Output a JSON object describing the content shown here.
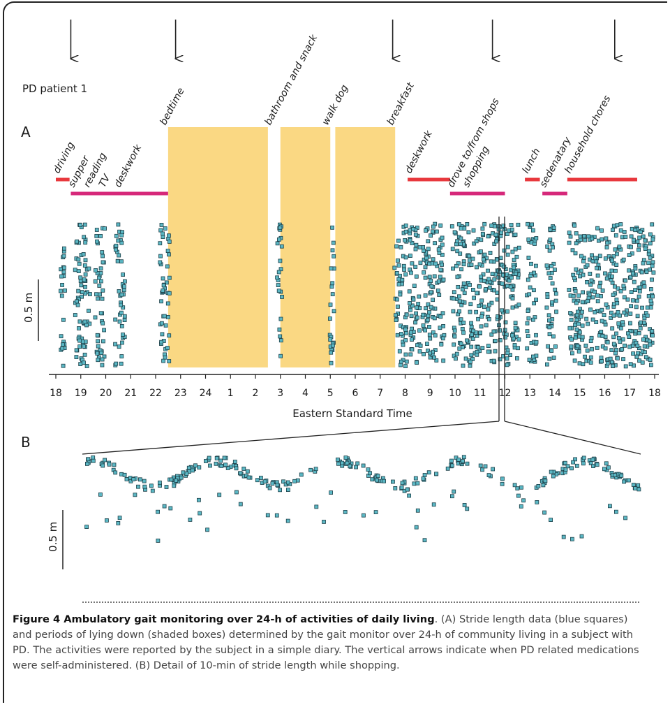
{
  "figure": {
    "patient_label": "PD patient 1",
    "panel_a": "A",
    "panel_b": "B",
    "scale_label_a": "0.5 m",
    "scale_label_b": "0.5 m",
    "caption_title": "Figure 4 Ambulatory gait monitoring over 24-h of activities of daily living",
    "caption_body": ". (A) Stride length data (blue squares) and periods of lying down (shaded boxes) determined by the gait monitor over 24-h of community living in a subject with PD. The activities were reported by the subject in a simple diary. The vertical arrows indicate when PD related medications were self-administered. (B) Detail of 10-min of stride length while shopping."
  },
  "colors": {
    "marker_fill": "#5bb7c4",
    "marker_stroke": "#1c3f48",
    "lying_box": "#fad883",
    "activity_red": "#e8383d",
    "activity_magenta": "#d6287a",
    "axis": "#222222"
  },
  "chart_data": [
    {
      "type": "scatter",
      "panel": "A",
      "xlabel": "Eastern Standard Time",
      "x_ticks": [
        "18",
        "19",
        "20",
        "21",
        "22",
        "23",
        "24",
        "1",
        "2",
        "3",
        "4",
        "5",
        "6",
        "7",
        "8",
        "9",
        "10",
        "11",
        "12",
        "13",
        "14",
        "15",
        "16",
        "17",
        "18"
      ],
      "x_range_hours": [
        18,
        42
      ],
      "medication_times_hours": [
        18.6,
        22.8,
        31.5,
        35.5,
        40.4
      ],
      "lying_down_periods_hours": [
        [
          22.5,
          26.5
        ],
        [
          27.0,
          29.0
        ],
        [
          29.2,
          31.6
        ]
      ],
      "activities": [
        {
          "label": "driving",
          "start": 18.0,
          "end": 18.55,
          "color": "red"
        },
        {
          "label": "supper",
          "start": 18.6,
          "end": 22.5,
          "color": "magenta"
        },
        {
          "label": "reading",
          "start": 18.6,
          "end": 22.5,
          "color": "magenta"
        },
        {
          "label": "TV",
          "start": 18.6,
          "end": 22.5,
          "color": "magenta"
        },
        {
          "label": "deskwork",
          "start": 18.6,
          "end": 22.5,
          "color": "magenta"
        },
        {
          "label": "bedtime",
          "start": 22.5,
          "end": 22.5,
          "color": "none"
        },
        {
          "label": "bathroom and snack",
          "start": 26.7,
          "end": 26.7,
          "color": "none"
        },
        {
          "label": "walk dog",
          "start": 29.0,
          "end": 29.0,
          "color": "none"
        },
        {
          "label": "breakfast",
          "start": 31.6,
          "end": 31.6,
          "color": "none"
        },
        {
          "label": "deskwork",
          "start": 32.1,
          "end": 33.8,
          "color": "red"
        },
        {
          "label": "drove to/from shops",
          "start": 33.8,
          "end": 36.0,
          "color": "magenta"
        },
        {
          "label": "shopping",
          "start": 33.8,
          "end": 36.0,
          "color": "magenta"
        },
        {
          "label": "lunch",
          "start": 36.8,
          "end": 37.4,
          "color": "red"
        },
        {
          "label": "sedenatary",
          "start": 37.5,
          "end": 38.5,
          "color": "magenta"
        },
        {
          "label": "household chores",
          "start": 38.5,
          "end": 41.3,
          "color": "red"
        }
      ],
      "stride_clusters_hours": [
        [
          18.1,
          18.3
        ],
        [
          18.7,
          19.3
        ],
        [
          19.5,
          19.9
        ],
        [
          20.3,
          20.7
        ],
        [
          22.1,
          22.5
        ],
        [
          26.8,
          27.0
        ],
        [
          28.9,
          29.1
        ],
        [
          31.5,
          32.0
        ],
        [
          32.1,
          33.5
        ],
        [
          33.8,
          36.5
        ],
        [
          36.8,
          37.2
        ],
        [
          37.6,
          38.0
        ],
        [
          38.5,
          41.9
        ]
      ],
      "y_scale_bar": "0.5 m"
    },
    {
      "type": "scatter",
      "panel": "B",
      "description_source": "Detail of 10-min of stride length while shopping",
      "y_scale_bar": "0.5 m"
    }
  ]
}
